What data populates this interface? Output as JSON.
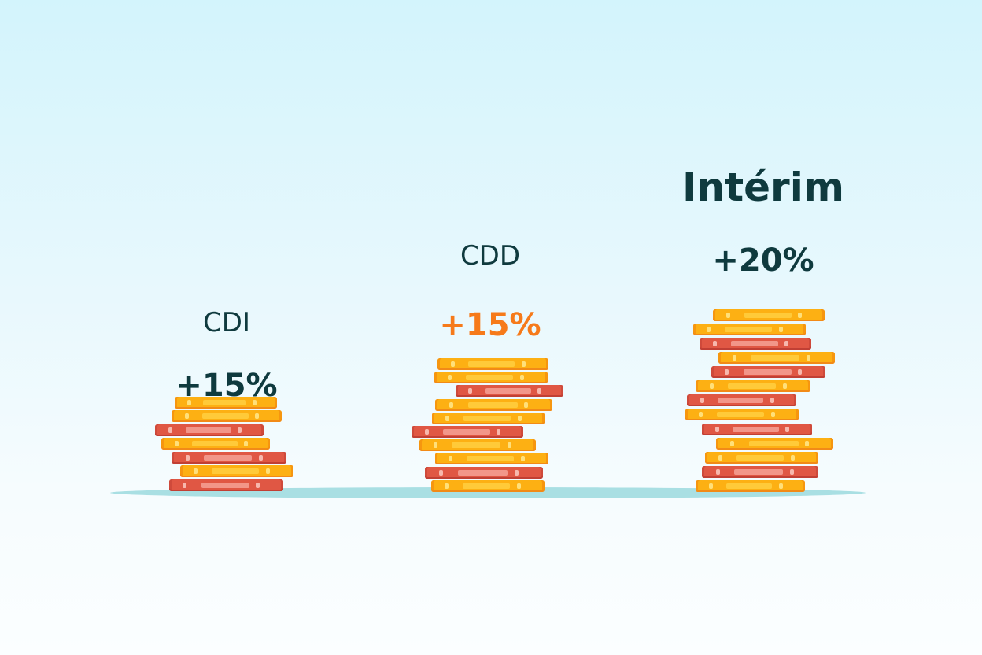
{
  "columns": [
    {
      "id": "cdi",
      "title": "CDI",
      "value_label": "+15%",
      "value_color": "#0f3a3e",
      "title_style": "regular",
      "stack": [
        "red",
        "gold",
        "red",
        "gold",
        "red",
        "gold",
        "gold"
      ]
    },
    {
      "id": "cdd",
      "title": "CDD",
      "value_label": "+15%",
      "value_color": "#f67a1a",
      "title_style": "regular",
      "stack": [
        "gold",
        "red",
        "gold",
        "gold",
        "red",
        "gold",
        "gold",
        "red",
        "gold",
        "gold"
      ]
    },
    {
      "id": "interim",
      "title": "Intérim",
      "value_label": "+20%",
      "value_color": "#0f3a3e",
      "title_style": "bold",
      "stack": [
        "gold",
        "red",
        "gold",
        "gold",
        "red",
        "gold",
        "red",
        "gold",
        "red",
        "gold",
        "red",
        "gold",
        "gold"
      ]
    }
  ],
  "colors": {
    "text_dark": "#0f3a3e",
    "accent_orange": "#f67a1a",
    "coin_gold": "#fdb013",
    "coin_red": "#e05744",
    "ground": "#a9dfe3"
  }
}
